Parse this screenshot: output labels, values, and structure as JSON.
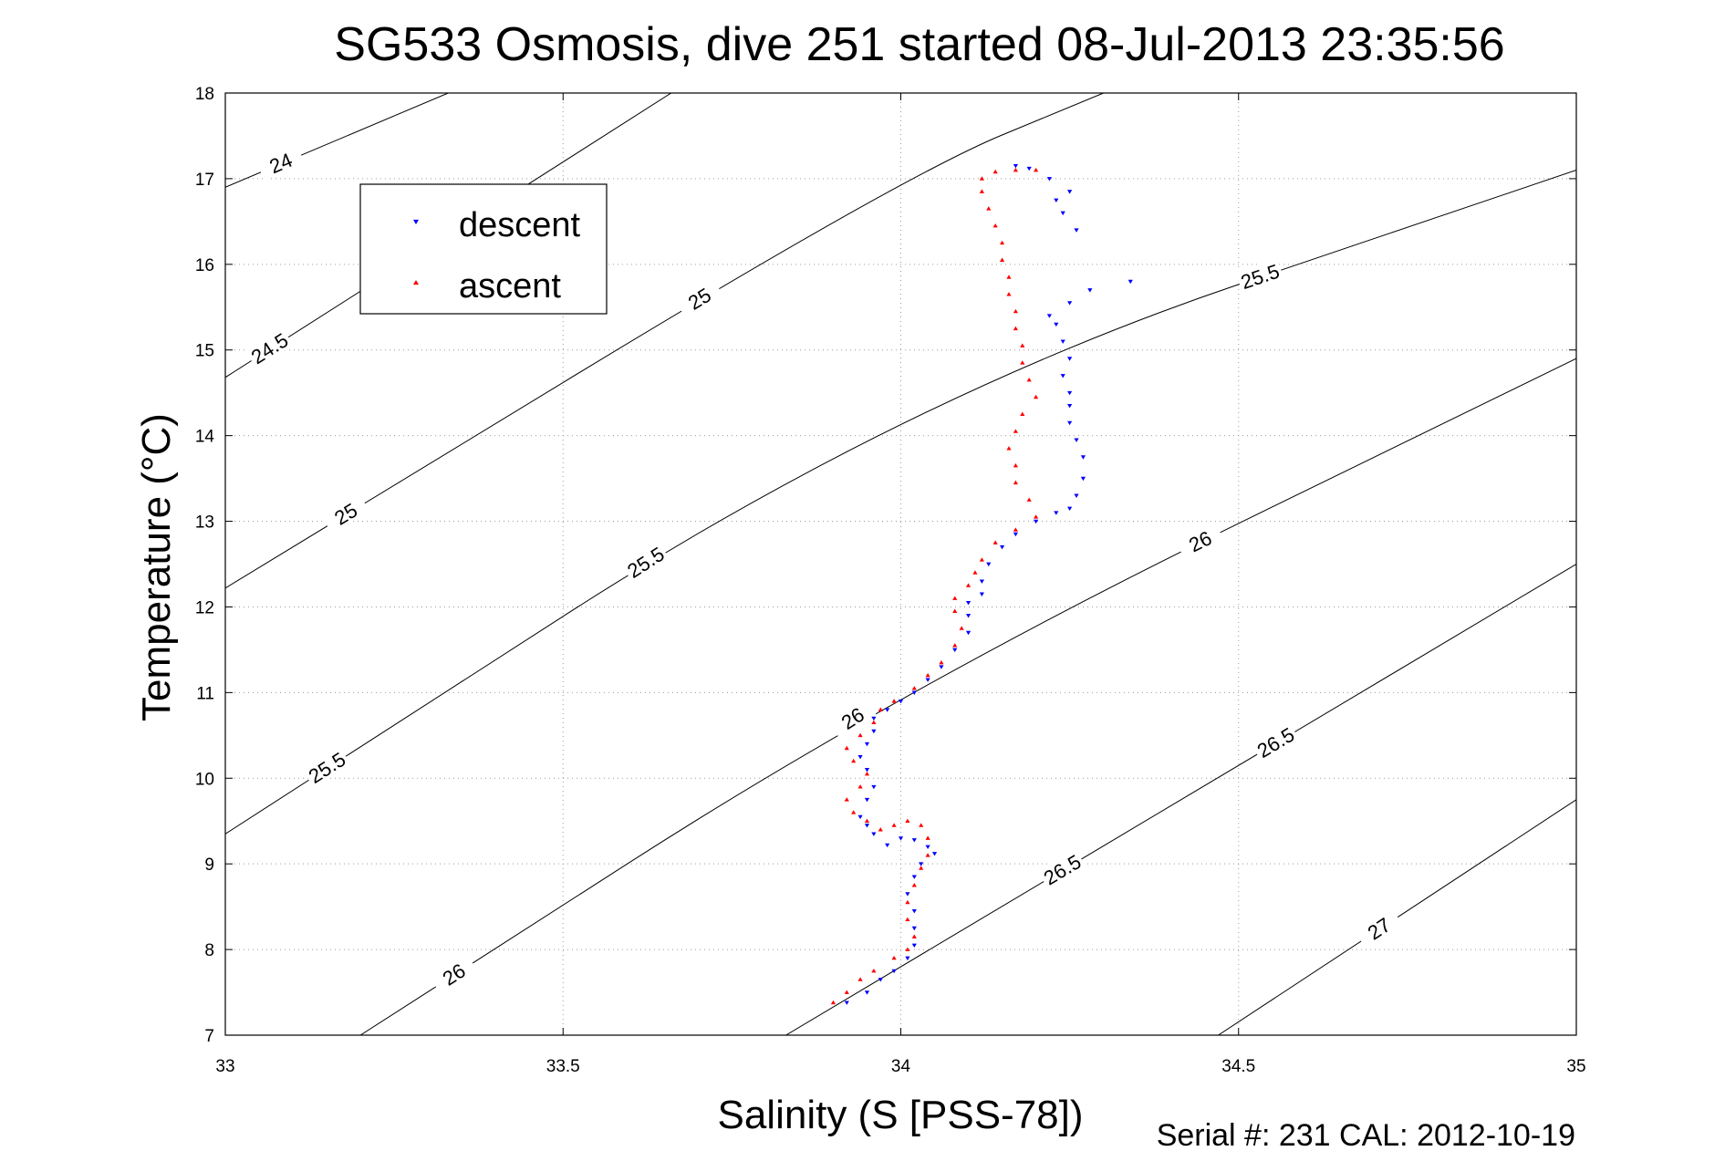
{
  "chart_data": {
    "type": "scatter",
    "title": "SG533 Osmosis, dive 251 started 08-Jul-2013 23:35:56",
    "xlabel": "Salinity (S [PSS-78])",
    "ylabel": "Temperature (°C)",
    "xlim": [
      33,
      35
    ],
    "ylim": [
      7,
      18
    ],
    "xticks": [
      33,
      33.5,
      34,
      34.5,
      35
    ],
    "xtick_labels": [
      "33",
      "33.5",
      "34",
      "34.5",
      "35"
    ],
    "yticks": [
      7,
      8,
      9,
      10,
      11,
      12,
      13,
      14,
      15,
      16,
      17,
      18
    ],
    "ytick_labels": [
      "7",
      "8",
      "9",
      "10",
      "11",
      "12",
      "13",
      "14",
      "15",
      "16",
      "17",
      "18"
    ],
    "grid": true,
    "legend_position": "top-left",
    "footer": "Serial #: 231  CAL: 2012-10-19",
    "series": [
      {
        "name": "descent",
        "marker": "triangle-down",
        "color": "#0000ff",
        "points": [
          [
            33.92,
            7.38
          ],
          [
            33.95,
            7.5
          ],
          [
            33.97,
            7.65
          ],
          [
            33.99,
            7.75
          ],
          [
            34.01,
            7.9
          ],
          [
            34.02,
            8.05
          ],
          [
            34.02,
            8.25
          ],
          [
            34.02,
            8.45
          ],
          [
            34.01,
            8.65
          ],
          [
            34.02,
            8.85
          ],
          [
            34.03,
            9.0
          ],
          [
            34.05,
            9.12
          ],
          [
            34.04,
            9.2
          ],
          [
            34.02,
            9.28
          ],
          [
            34.0,
            9.3
          ],
          [
            33.98,
            9.22
          ],
          [
            33.96,
            9.35
          ],
          [
            33.95,
            9.45
          ],
          [
            33.94,
            9.55
          ],
          [
            33.95,
            9.75
          ],
          [
            33.96,
            9.9
          ],
          [
            33.95,
            10.1
          ],
          [
            33.94,
            10.25
          ],
          [
            33.95,
            10.4
          ],
          [
            33.96,
            10.55
          ],
          [
            33.96,
            10.7
          ],
          [
            33.98,
            10.8
          ],
          [
            34.0,
            10.9
          ],
          [
            34.02,
            11.0
          ],
          [
            34.04,
            11.15
          ],
          [
            34.06,
            11.3
          ],
          [
            34.08,
            11.5
          ],
          [
            34.1,
            11.7
          ],
          [
            34.1,
            11.9
          ],
          [
            34.1,
            12.05
          ],
          [
            34.12,
            12.15
          ],
          [
            34.12,
            12.3
          ],
          [
            34.13,
            12.5
          ],
          [
            34.15,
            12.7
          ],
          [
            34.17,
            12.85
          ],
          [
            34.2,
            13.0
          ],
          [
            34.23,
            13.1
          ],
          [
            34.25,
            13.15
          ],
          [
            34.26,
            13.3
          ],
          [
            34.27,
            13.5
          ],
          [
            34.27,
            13.75
          ],
          [
            34.26,
            13.95
          ],
          [
            34.25,
            14.15
          ],
          [
            34.25,
            14.35
          ],
          [
            34.25,
            14.5
          ],
          [
            34.24,
            14.7
          ],
          [
            34.25,
            14.9
          ],
          [
            34.24,
            15.1
          ],
          [
            34.23,
            15.3
          ],
          [
            34.22,
            15.4
          ],
          [
            34.25,
            15.55
          ],
          [
            34.28,
            15.7
          ],
          [
            34.34,
            15.8
          ],
          [
            34.26,
            16.4
          ],
          [
            34.24,
            16.6
          ],
          [
            34.23,
            16.75
          ],
          [
            34.25,
            16.85
          ],
          [
            34.22,
            17.0
          ],
          [
            34.19,
            17.12
          ],
          [
            34.17,
            17.15
          ]
        ]
      },
      {
        "name": "ascent",
        "marker": "triangle-up",
        "color": "#ff0000",
        "points": [
          [
            33.9,
            7.38
          ],
          [
            33.92,
            7.5
          ],
          [
            33.94,
            7.65
          ],
          [
            33.96,
            7.75
          ],
          [
            33.99,
            7.9
          ],
          [
            34.01,
            8.0
          ],
          [
            34.02,
            8.15
          ],
          [
            34.01,
            8.35
          ],
          [
            34.01,
            8.55
          ],
          [
            34.02,
            8.75
          ],
          [
            34.03,
            8.95
          ],
          [
            34.04,
            9.1
          ],
          [
            34.04,
            9.3
          ],
          [
            34.03,
            9.45
          ],
          [
            34.01,
            9.5
          ],
          [
            33.99,
            9.45
          ],
          [
            33.97,
            9.4
          ],
          [
            33.95,
            9.5
          ],
          [
            33.93,
            9.6
          ],
          [
            33.92,
            9.75
          ],
          [
            33.94,
            9.9
          ],
          [
            33.95,
            10.05
          ],
          [
            33.93,
            10.2
          ],
          [
            33.92,
            10.35
          ],
          [
            33.94,
            10.5
          ],
          [
            33.96,
            10.65
          ],
          [
            33.97,
            10.8
          ],
          [
            33.99,
            10.9
          ],
          [
            34.02,
            11.05
          ],
          [
            34.04,
            11.2
          ],
          [
            34.06,
            11.35
          ],
          [
            34.08,
            11.55
          ],
          [
            34.09,
            11.75
          ],
          [
            34.08,
            11.95
          ],
          [
            34.08,
            12.1
          ],
          [
            34.1,
            12.25
          ],
          [
            34.11,
            12.4
          ],
          [
            34.12,
            12.55
          ],
          [
            34.14,
            12.75
          ],
          [
            34.17,
            12.9
          ],
          [
            34.2,
            13.05
          ],
          [
            34.19,
            13.25
          ],
          [
            34.17,
            13.45
          ],
          [
            34.17,
            13.65
          ],
          [
            34.16,
            13.85
          ],
          [
            34.17,
            14.05
          ],
          [
            34.18,
            14.25
          ],
          [
            34.2,
            14.45
          ],
          [
            34.19,
            14.65
          ],
          [
            34.18,
            14.85
          ],
          [
            34.18,
            15.05
          ],
          [
            34.17,
            15.25
          ],
          [
            34.17,
            15.45
          ],
          [
            34.16,
            15.65
          ],
          [
            34.16,
            15.85
          ],
          [
            34.15,
            16.05
          ],
          [
            34.15,
            16.25
          ],
          [
            34.14,
            16.45
          ],
          [
            34.13,
            16.65
          ],
          [
            34.12,
            16.85
          ],
          [
            34.12,
            17.0
          ],
          [
            34.14,
            17.08
          ],
          [
            34.17,
            17.1
          ],
          [
            34.2,
            17.1
          ]
        ]
      }
    ],
    "isopycnals": [
      {
        "label": "24",
        "points": [
          [
            33.0,
            16.9
          ],
          [
            33.33,
            18.0
          ]
        ]
      },
      {
        "label": "24.5",
        "points": [
          [
            33.0,
            14.68
          ],
          [
            33.66,
            18.0
          ]
        ]
      },
      {
        "label": "24.5",
        "points": [
          [
            33.0,
            14.68
          ],
          [
            33.66,
            18.0
          ]
        ]
      },
      {
        "label": "25",
        "points": [
          [
            33.0,
            12.22
          ],
          [
            34.0,
            17.02
          ],
          [
            34.3,
            18.0
          ]
        ]
      },
      {
        "label": "25",
        "points": [
          [
            33.0,
            12.22
          ],
          [
            34.0,
            17.02
          ],
          [
            34.3,
            18.0
          ]
        ]
      },
      {
        "label": "25.5",
        "points": [
          [
            33.0,
            9.35
          ],
          [
            34.0,
            14.43
          ],
          [
            35.0,
            17.1
          ]
        ]
      },
      {
        "label": "25.5",
        "points": [
          [
            33.0,
            9.35
          ],
          [
            34.0,
            14.43
          ],
          [
            35.0,
            17.1
          ]
        ]
      },
      {
        "label": "25.5",
        "points": [
          [
            33.0,
            9.35
          ],
          [
            34.0,
            14.43
          ],
          [
            35.0,
            17.1
          ]
        ]
      },
      {
        "label": "26",
        "points": [
          [
            33.2,
            7.0
          ],
          [
            34.0,
            11.05
          ],
          [
            35.0,
            14.9
          ]
        ]
      },
      {
        "label": "26",
        "points": [
          [
            33.2,
            7.0
          ],
          [
            34.0,
            11.05
          ],
          [
            35.0,
            14.9
          ]
        ]
      },
      {
        "label": "26",
        "points": [
          [
            33.2,
            7.0
          ],
          [
            34.0,
            11.05
          ],
          [
            35.0,
            14.9
          ]
        ]
      },
      {
        "label": "26.5",
        "points": [
          [
            33.83,
            7.0
          ],
          [
            35.0,
            12.5
          ]
        ]
      },
      {
        "label": "26.5",
        "points": [
          [
            33.83,
            7.0
          ],
          [
            35.0,
            12.5
          ]
        ]
      },
      {
        "label": "27",
        "points": [
          [
            34.47,
            7.0
          ],
          [
            35.0,
            9.75
          ]
        ]
      }
    ]
  }
}
